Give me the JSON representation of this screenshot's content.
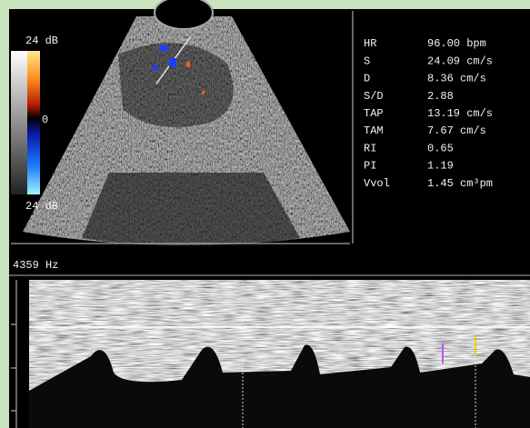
{
  "scale": {
    "top": "24 dB",
    "middle": "0",
    "bottom": "24 dB"
  },
  "measurements": [
    {
      "label": "HR",
      "value": "96.00 bpm"
    },
    {
      "label": "S",
      "value": "24.09 cm/s"
    },
    {
      "label": "D",
      "value": "8.36 cm/s"
    },
    {
      "label": "S/D",
      "value": "2.88"
    },
    {
      "label": "TAP",
      "value": "13.19 cm/s"
    },
    {
      "label": "TAM",
      "value": "7.67 cm/s"
    },
    {
      "label": "RI",
      "value": "0.65"
    },
    {
      "label": "PI",
      "value": "1.19"
    },
    {
      "label": "Vvol",
      "value": "1.45 cm³pm"
    }
  ],
  "doppler": {
    "prf": "4359 Hz"
  }
}
